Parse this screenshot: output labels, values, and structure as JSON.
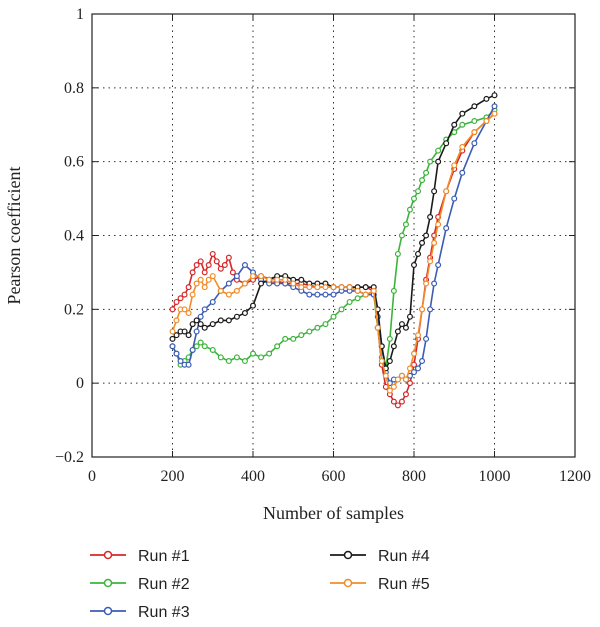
{
  "chart_data": {
    "type": "line",
    "xlabel": "Number of samples",
    "ylabel": "Pearson coefficient",
    "xlim": [
      0,
      1200
    ],
    "ylim": [
      -0.2,
      1
    ],
    "xticks": [
      0,
      200,
      400,
      600,
      800,
      1000,
      1200
    ],
    "yticks": [
      -0.2,
      0,
      0.2,
      0.4,
      0.6,
      0.8,
      1
    ],
    "xtick_labels": [
      "0",
      "200",
      "400",
      "600",
      "800",
      "1000",
      "1200"
    ],
    "ytick_labels": [
      "−0.2",
      "0",
      "0.2",
      "0.4",
      "0.6",
      "0.8",
      "1"
    ],
    "grid": true,
    "legend_position": "bottom",
    "series": [
      {
        "name": "Run #1",
        "color": "#d62728",
        "x": [
          200,
          210,
          220,
          230,
          240,
          250,
          260,
          270,
          280,
          290,
          300,
          310,
          320,
          330,
          340,
          350,
          360,
          380,
          400,
          420,
          450,
          480,
          520,
          560,
          600,
          640,
          680,
          700,
          710,
          720,
          730,
          740,
          750,
          760,
          770,
          780,
          790,
          800,
          810,
          820,
          830,
          840,
          850,
          860,
          880,
          900,
          920,
          950,
          980,
          1000
        ],
        "y": [
          0.2,
          0.22,
          0.23,
          0.24,
          0.26,
          0.3,
          0.32,
          0.33,
          0.3,
          0.32,
          0.35,
          0.33,
          0.31,
          0.32,
          0.34,
          0.3,
          0.28,
          0.27,
          0.28,
          0.29,
          0.28,
          0.27,
          0.27,
          0.26,
          0.26,
          0.26,
          0.26,
          0.25,
          0.15,
          0.05,
          -0.01,
          -0.03,
          -0.05,
          -0.06,
          -0.05,
          -0.03,
          0.0,
          0.05,
          0.12,
          0.2,
          0.28,
          0.34,
          0.4,
          0.45,
          0.52,
          0.58,
          0.63,
          0.68,
          0.71,
          0.73
        ]
      },
      {
        "name": "Run #2",
        "color": "#3cb43c",
        "x": [
          200,
          210,
          220,
          230,
          240,
          250,
          260,
          270,
          280,
          300,
          320,
          340,
          360,
          380,
          400,
          420,
          440,
          460,
          480,
          500,
          520,
          540,
          560,
          580,
          600,
          620,
          640,
          660,
          680,
          700,
          710,
          720,
          730,
          740,
          750,
          760,
          770,
          780,
          790,
          800,
          810,
          820,
          830,
          840,
          860,
          880,
          900,
          920,
          950,
          980,
          1000
        ],
        "y": [
          0.1,
          0.08,
          0.05,
          0.06,
          0.07,
          0.09,
          0.1,
          0.11,
          0.1,
          0.09,
          0.07,
          0.06,
          0.07,
          0.06,
          0.08,
          0.07,
          0.08,
          0.1,
          0.12,
          0.12,
          0.13,
          0.14,
          0.15,
          0.16,
          0.18,
          0.2,
          0.22,
          0.23,
          0.24,
          0.24,
          0.15,
          0.07,
          0.04,
          0.12,
          0.25,
          0.35,
          0.4,
          0.43,
          0.47,
          0.5,
          0.52,
          0.55,
          0.57,
          0.6,
          0.63,
          0.66,
          0.68,
          0.7,
          0.71,
          0.72,
          0.74
        ]
      },
      {
        "name": "Run #3",
        "color": "#3b5bb5",
        "x": [
          200,
          210,
          220,
          230,
          240,
          250,
          260,
          270,
          280,
          300,
          320,
          340,
          360,
          380,
          400,
          420,
          440,
          460,
          480,
          500,
          520,
          540,
          560,
          580,
          600,
          620,
          640,
          660,
          680,
          700,
          710,
          720,
          730,
          740,
          750,
          760,
          770,
          780,
          790,
          800,
          810,
          820,
          830,
          840,
          850,
          860,
          880,
          900,
          920,
          950,
          980,
          1000
        ],
        "y": [
          0.1,
          0.08,
          0.06,
          0.05,
          0.05,
          0.09,
          0.14,
          0.18,
          0.2,
          0.22,
          0.25,
          0.27,
          0.29,
          0.32,
          0.3,
          0.28,
          0.27,
          0.27,
          0.27,
          0.26,
          0.25,
          0.24,
          0.24,
          0.24,
          0.24,
          0.25,
          0.25,
          0.25,
          0.24,
          0.24,
          0.18,
          0.1,
          0.03,
          0.0,
          0.01,
          0.01,
          0.02,
          0.01,
          0.02,
          0.03,
          0.04,
          0.06,
          0.12,
          0.2,
          0.27,
          0.32,
          0.42,
          0.5,
          0.57,
          0.65,
          0.71,
          0.75
        ]
      },
      {
        "name": "Run #4",
        "color": "#1a1a1a",
        "x": [
          200,
          210,
          220,
          230,
          240,
          250,
          260,
          270,
          280,
          300,
          320,
          340,
          360,
          380,
          400,
          420,
          440,
          460,
          480,
          500,
          520,
          540,
          560,
          580,
          600,
          620,
          640,
          660,
          680,
          700,
          710,
          720,
          730,
          740,
          750,
          760,
          770,
          780,
          790,
          800,
          810,
          820,
          830,
          840,
          850,
          860,
          880,
          900,
          920,
          950,
          980,
          1000
        ],
        "y": [
          0.12,
          0.13,
          0.14,
          0.14,
          0.13,
          0.16,
          0.17,
          0.16,
          0.15,
          0.16,
          0.17,
          0.17,
          0.18,
          0.19,
          0.21,
          0.27,
          0.28,
          0.29,
          0.29,
          0.28,
          0.28,
          0.27,
          0.27,
          0.27,
          0.26,
          0.26,
          0.26,
          0.26,
          0.26,
          0.26,
          0.2,
          0.1,
          0.04,
          0.06,
          0.1,
          0.14,
          0.16,
          0.15,
          0.18,
          0.32,
          0.35,
          0.38,
          0.4,
          0.45,
          0.52,
          0.6,
          0.65,
          0.7,
          0.73,
          0.75,
          0.77,
          0.78
        ]
      },
      {
        "name": "Run #5",
        "color": "#f28c28",
        "x": [
          200,
          210,
          220,
          230,
          240,
          250,
          260,
          270,
          280,
          290,
          300,
          320,
          340,
          360,
          380,
          400,
          420,
          440,
          460,
          480,
          500,
          520,
          540,
          560,
          580,
          600,
          620,
          640,
          660,
          680,
          700,
          710,
          720,
          730,
          740,
          750,
          760,
          770,
          780,
          790,
          800,
          810,
          820,
          830,
          840,
          850,
          860,
          880,
          900,
          920,
          950,
          980,
          1000
        ],
        "y": [
          0.14,
          0.17,
          0.2,
          0.2,
          0.19,
          0.24,
          0.27,
          0.28,
          0.26,
          0.28,
          0.29,
          0.25,
          0.24,
          0.25,
          0.27,
          0.29,
          0.29,
          0.28,
          0.28,
          0.28,
          0.27,
          0.26,
          0.26,
          0.26,
          0.26,
          0.26,
          0.26,
          0.26,
          0.25,
          0.24,
          0.25,
          0.15,
          0.06,
          0.02,
          -0.02,
          -0.01,
          0.01,
          0.02,
          0.01,
          0.04,
          0.08,
          0.13,
          0.2,
          0.27,
          0.33,
          0.38,
          0.43,
          0.52,
          0.59,
          0.64,
          0.68,
          0.71,
          0.73
        ]
      }
    ]
  }
}
